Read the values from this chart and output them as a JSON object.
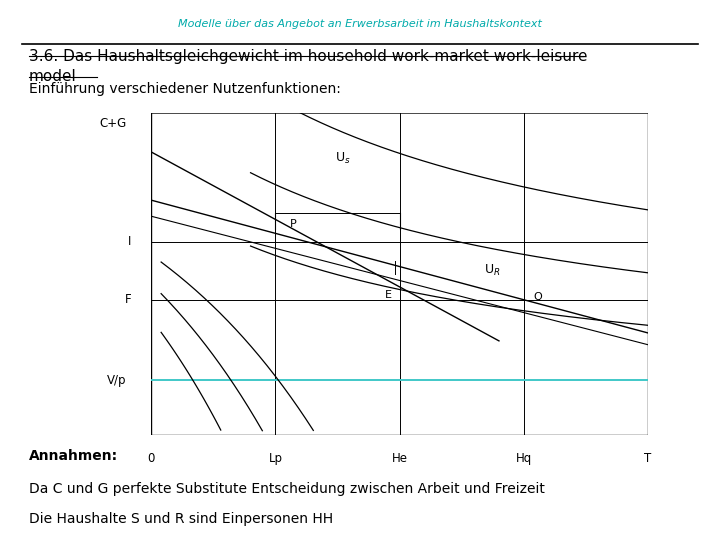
{
  "title_top": "Modelle über das Angebot an Erwerbsarbeit im Haushaltskontext",
  "title_top_color": "#00AAAA",
  "heading_line1": "3.6. Das Haushaltsgleichgewicht im household work-market work-leisure",
  "heading_line2": "model",
  "subheading": "Einführung verschiedener Nutzenfunktionen:",
  "footnote1": "Annahmen:",
  "footnote2": "Da C und G perfekte Substitute Entscheidung zwischen Arbeit und Freizeit",
  "footnote3": "Die Haushalte S und R sind Einpersonen HH",
  "bg_color": "#ffffff",
  "Lp": 0.25,
  "He": 0.5,
  "Hq": 0.75,
  "T": 1.0,
  "F_level": 0.42,
  "I_level": 0.6,
  "Vp_level": 0.17,
  "line_color": "#000000",
  "cyan_color": "#40C8C8"
}
